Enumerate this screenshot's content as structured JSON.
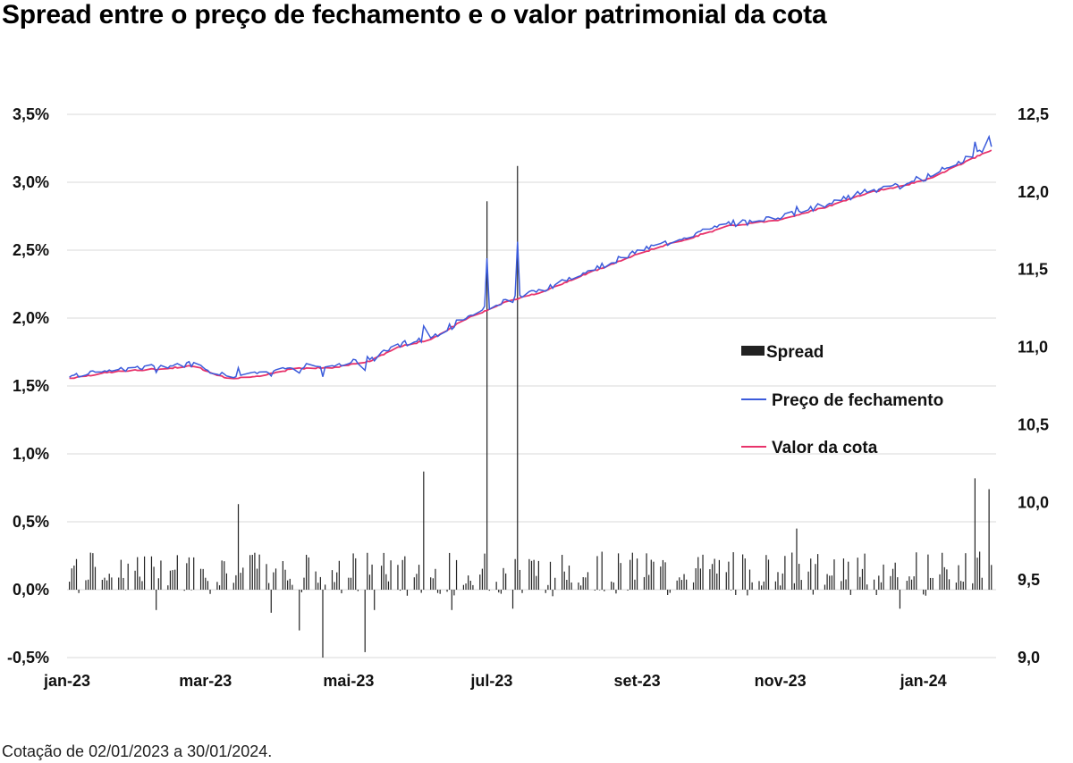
{
  "title": "Spread entre o preço de fechamento e o valor patrimonial da cota",
  "note": "Cotação de 02/01/2023 a 30/01/2024.",
  "colors": {
    "spread": "#222222",
    "preco": "#3b5bdb",
    "valor": "#e8336b",
    "grid": "#d9d9d9"
  },
  "chart_data": {
    "type": "bar+line",
    "y_left": {
      "ticks": [
        "3,5%",
        "3,0%",
        "2,5%",
        "2,0%",
        "1,5%",
        "1,0%",
        "0,5%",
        "0,0%",
        "-0,5%"
      ],
      "range": [
        -0.5,
        3.5
      ]
    },
    "y_right": {
      "ticks": [
        "12,5",
        "12,0",
        "11,5",
        "11,0",
        "10,5",
        "10,0",
        "9,5",
        "9,0"
      ],
      "range": [
        9.0,
        12.5
      ]
    },
    "x_ticks": [
      "jan-23",
      "mar-23",
      "mai-23",
      "jul-23",
      "set-23",
      "nov-23",
      "jan-24"
    ],
    "legend": [
      "Spread",
      "Preço de fechamento",
      "Valor da cota"
    ],
    "valor_da_cota_anchors": [
      [
        "2023-01-02",
        10.8
      ],
      [
        "2023-01-20",
        10.84
      ],
      [
        "2023-02-10",
        10.86
      ],
      [
        "2023-02-24",
        10.88
      ],
      [
        "2023-03-10",
        10.8
      ],
      [
        "2023-03-24",
        10.81
      ],
      [
        "2023-04-07",
        10.86
      ],
      [
        "2023-04-25",
        10.87
      ],
      [
        "2023-05-10",
        10.91
      ],
      [
        "2023-05-22",
        11.0
      ],
      [
        "2023-06-05",
        11.05
      ],
      [
        "2023-06-20",
        11.18
      ],
      [
        "2023-07-05",
        11.28
      ],
      [
        "2023-07-25",
        11.37
      ],
      [
        "2023-08-15",
        11.5
      ],
      [
        "2023-09-05",
        11.62
      ],
      [
        "2023-09-25",
        11.71
      ],
      [
        "2023-10-10",
        11.78
      ],
      [
        "2023-10-31",
        11.82
      ],
      [
        "2023-11-20",
        11.9
      ],
      [
        "2023-12-10",
        12.0
      ],
      [
        "2024-01-01",
        12.07
      ],
      [
        "2024-01-30",
        12.27
      ]
    ],
    "preco_spikes": [
      [
        "2023-04-20",
        -0.5
      ],
      [
        "2023-06-02",
        0.9
      ],
      [
        "2023-06-29",
        2.8
      ],
      [
        "2023-07-12",
        3.1
      ],
      [
        "2024-01-23",
        0.8
      ],
      [
        "2024-01-29",
        0.7
      ]
    ],
    "spread_notable": [
      [
        "2023-02-08",
        -0.15
      ],
      [
        "2023-03-15",
        0.63
      ],
      [
        "2023-03-29",
        -0.17
      ],
      [
        "2023-04-10",
        -0.3
      ],
      [
        "2023-05-08",
        -0.46
      ],
      [
        "2023-05-12",
        -0.15
      ],
      [
        "2023-06-02",
        0.87
      ],
      [
        "2023-06-14",
        -0.15
      ],
      [
        "2023-06-29",
        2.86
      ],
      [
        "2023-07-05",
        -0.03
      ],
      [
        "2023-07-10",
        -0.14
      ],
      [
        "2023-07-12",
        3.12
      ],
      [
        "2023-11-08",
        0.45
      ],
      [
        "2023-12-22",
        -0.14
      ],
      [
        "2024-01-23",
        0.82
      ],
      [
        "2024-01-25",
        0.28
      ],
      [
        "2024-01-29",
        0.74
      ]
    ]
  }
}
